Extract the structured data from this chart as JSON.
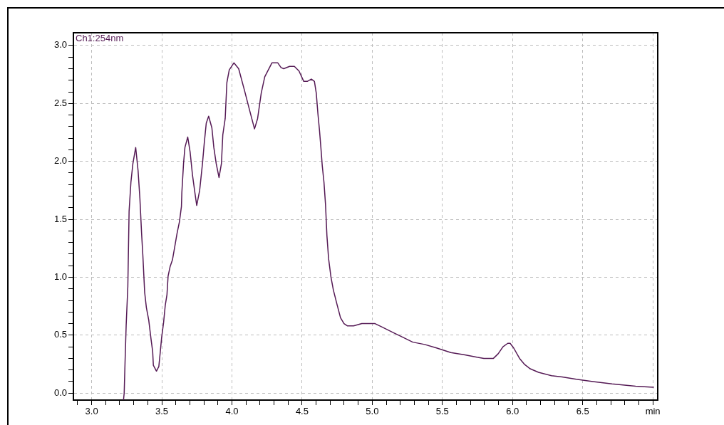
{
  "chart_data": {
    "type": "line",
    "xlim": [
      2.87,
      7.035
    ],
    "ylim": [
      -0.06,
      3.11
    ],
    "xticks": [
      {
        "value": 2.9,
        "label": null
      },
      {
        "value": 3,
        "label": "3.0"
      },
      {
        "value": 3.1,
        "label": null
      },
      {
        "value": 3.2,
        "label": null
      },
      {
        "value": 3.3,
        "label": null
      },
      {
        "value": 3.4,
        "label": null
      },
      3.5,
      {
        "value": 3.6,
        "label": null
      },
      {
        "value": 3.7,
        "label": null
      },
      {
        "value": 3.8,
        "label": null
      },
      {
        "value": 3.9,
        "label": null
      },
      {
        "value": 4,
        "label": "4.0"
      },
      {
        "value": 4.1,
        "label": null
      },
      {
        "value": 4.2,
        "label": null
      },
      {
        "value": 4.3,
        "label": null
      },
      {
        "value": 4.4,
        "label": null
      },
      4.5,
      {
        "value": 4.6,
        "label": null
      },
      {
        "value": 4.7,
        "label": null
      },
      {
        "value": 4.8,
        "label": null
      },
      {
        "value": 4.9,
        "label": null
      },
      {
        "value": 5,
        "label": "5.0"
      },
      {
        "value": 5.1,
        "label": null
      },
      {
        "value": 5.2,
        "label": null
      },
      {
        "value": 5.3,
        "label": null
      },
      {
        "value": 5.4,
        "label": null
      },
      5.5,
      {
        "value": 5.6,
        "label": null
      },
      {
        "value": 5.7,
        "label": null
      },
      {
        "value": 5.8,
        "label": null
      },
      {
        "value": 5.9,
        "label": null
      },
      {
        "value": 6,
        "label": "6.0"
      },
      {
        "value": 6.1,
        "label": null
      },
      {
        "value": 6.2,
        "label": null
      },
      {
        "value": 6.3,
        "label": null
      },
      {
        "value": 6.4,
        "label": null
      },
      6.5,
      {
        "value": 6.6,
        "label": null
      },
      {
        "value": 6.7,
        "label": null
      },
      {
        "value": 6.8,
        "label": null
      },
      {
        "value": 6.9,
        "label": null
      },
      {
        "value": 7,
        "label": "min"
      }
    ],
    "yticks": [
      {
        "value": 0,
        "label": "0.0"
      },
      {
        "value": 0.1,
        "label": null
      },
      {
        "value": 0.2,
        "label": null
      },
      {
        "value": 0.3,
        "label": null
      },
      {
        "value": 0.4,
        "label": null
      },
      0.5,
      {
        "value": 0.6,
        "label": null
      },
      {
        "value": 0.7,
        "label": null
      },
      {
        "value": 0.8,
        "label": null
      },
      {
        "value": 0.9,
        "label": null
      },
      {
        "value": 1,
        "label": "1.0"
      },
      {
        "value": 1.1,
        "label": null
      },
      {
        "value": 1.2,
        "label": null
      },
      {
        "value": 1.3,
        "label": null
      },
      {
        "value": 1.4,
        "label": null
      },
      1.5,
      {
        "value": 1.6,
        "label": null
      },
      {
        "value": 1.7,
        "label": null
      },
      {
        "value": 1.8,
        "label": null
      },
      {
        "value": 1.9,
        "label": null
      },
      {
        "value": 2,
        "label": "2.0"
      },
      {
        "value": 2.1,
        "label": null
      },
      {
        "value": 2.2,
        "label": null
      },
      {
        "value": 2.3,
        "label": null
      },
      {
        "value": 2.4,
        "label": null
      },
      2.5,
      {
        "value": 2.6,
        "label": null
      },
      {
        "value": 2.7,
        "label": null
      },
      {
        "value": 2.8,
        "label": null
      },
      {
        "value": 2.9,
        "label": null
      },
      {
        "value": 3,
        "label": "3.0"
      }
    ],
    "grid": true,
    "legend": "top left",
    "series": [
      {
        "name": "Ch1:254nm",
        "color": "#551a55",
        "x": [
          3.227,
          3.232,
          3.238,
          3.246,
          3.258,
          3.267,
          3.28,
          3.294,
          3.314,
          3.331,
          3.344,
          3.356,
          3.365,
          3.378,
          3.39,
          3.407,
          3.424,
          3.435,
          3.44,
          3.462,
          3.479,
          3.488,
          3.499,
          3.513,
          3.525,
          3.537,
          3.545,
          3.559,
          3.576,
          3.592,
          3.609,
          3.626,
          3.64,
          3.643,
          3.655,
          3.665,
          3.685,
          3.702,
          3.719,
          3.736,
          3.749,
          3.77,
          3.79,
          3.803,
          3.817,
          3.834,
          3.857,
          3.871,
          3.888,
          3.908,
          3.925,
          3.935,
          3.952,
          3.964,
          3.981,
          4.014,
          4.048,
          4.09,
          4.124,
          4.161,
          4.183,
          4.209,
          4.234,
          4.285,
          4.327,
          4.35,
          4.369,
          4.411,
          4.445,
          4.478,
          4.512,
          4.537,
          4.566,
          4.588,
          4.601,
          4.613,
          4.624,
          4.634,
          4.644,
          4.656,
          4.667,
          4.677,
          4.689,
          4.706,
          4.723,
          4.748,
          4.774,
          4.799,
          4.824,
          4.867,
          4.926,
          5.02,
          5.07,
          5.154,
          5.222,
          5.289,
          5.374,
          5.458,
          5.56,
          5.661,
          5.746,
          5.796,
          5.864,
          5.898,
          5.932,
          5.966,
          5.983,
          6.008,
          6.05,
          6.084,
          6.126,
          6.185,
          6.278,
          6.354,
          6.455,
          6.573,
          6.709,
          6.877,
          7.004
        ],
        "values": [
          -0.06,
          0.0,
          0.26,
          0.58,
          0.92,
          1.57,
          1.82,
          1.98,
          2.12,
          1.92,
          1.68,
          1.38,
          1.19,
          0.87,
          0.74,
          0.63,
          0.46,
          0.36,
          0.24,
          0.19,
          0.23,
          0.34,
          0.48,
          0.61,
          0.76,
          0.85,
          1.01,
          1.09,
          1.15,
          1.26,
          1.38,
          1.48,
          1.61,
          1.73,
          1.98,
          2.12,
          2.21,
          2.08,
          1.88,
          1.73,
          1.62,
          1.75,
          1.98,
          2.16,
          2.33,
          2.39,
          2.29,
          2.12,
          1.98,
          1.86,
          1.98,
          2.23,
          2.37,
          2.68,
          2.79,
          2.85,
          2.8,
          2.61,
          2.45,
          2.28,
          2.37,
          2.59,
          2.73,
          2.85,
          2.85,
          2.81,
          2.8,
          2.82,
          2.82,
          2.78,
          2.69,
          2.69,
          2.71,
          2.69,
          2.59,
          2.41,
          2.27,
          2.12,
          1.96,
          1.82,
          1.63,
          1.36,
          1.16,
          1.0,
          0.89,
          0.77,
          0.65,
          0.6,
          0.58,
          0.58,
          0.6,
          0.6,
          0.57,
          0.52,
          0.48,
          0.44,
          0.42,
          0.39,
          0.35,
          0.33,
          0.31,
          0.3,
          0.3,
          0.34,
          0.4,
          0.43,
          0.43,
          0.39,
          0.3,
          0.25,
          0.21,
          0.18,
          0.15,
          0.14,
          0.12,
          0.1,
          0.08,
          0.06,
          0.05
        ]
      }
    ]
  }
}
